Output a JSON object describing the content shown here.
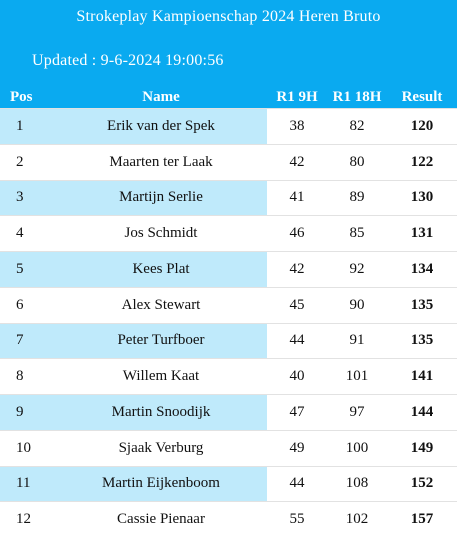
{
  "header": {
    "title": "Strokeplay Kampioenschap 2024 Heren Bruto",
    "updated": "Updated : 9-6-2024 19:00:56"
  },
  "columns": {
    "pos": "Pos",
    "name": "Name",
    "r1_9h": "R1 9H",
    "r1_18h": "R1 18H",
    "result": "Result"
  },
  "rows": [
    {
      "pos": "1",
      "name": "Erik van der Spek",
      "r1_9h": "38",
      "r1_18h": "82",
      "result": "120"
    },
    {
      "pos": "2",
      "name": "Maarten ter Laak",
      "r1_9h": "42",
      "r1_18h": "80",
      "result": "122"
    },
    {
      "pos": "3",
      "name": "Martijn Serlie",
      "r1_9h": "41",
      "r1_18h": "89",
      "result": "130"
    },
    {
      "pos": "4",
      "name": "Jos Schmidt",
      "r1_9h": "46",
      "r1_18h": "85",
      "result": "131"
    },
    {
      "pos": "5",
      "name": "Kees Plat",
      "r1_9h": "42",
      "r1_18h": "92",
      "result": "134"
    },
    {
      "pos": "6",
      "name": "Alex Stewart",
      "r1_9h": "45",
      "r1_18h": "90",
      "result": "135"
    },
    {
      "pos": "7",
      "name": "Peter Turfboer",
      "r1_9h": "44",
      "r1_18h": "91",
      "result": "135"
    },
    {
      "pos": "8",
      "name": "Willem Kaat",
      "r1_9h": "40",
      "r1_18h": "101",
      "result": "141"
    },
    {
      "pos": "9",
      "name": "Martin Snoodijk",
      "r1_9h": "47",
      "r1_18h": "97",
      "result": "144"
    },
    {
      "pos": "10",
      "name": "Sjaak Verburg",
      "r1_9h": "49",
      "r1_18h": "100",
      "result": "149"
    },
    {
      "pos": "11",
      "name": "Martin Eijkenboom",
      "r1_9h": "44",
      "r1_18h": "108",
      "result": "152"
    },
    {
      "pos": "12",
      "name": "Cassie Pienaar",
      "r1_9h": "55",
      "r1_18h": "102",
      "result": "157"
    }
  ],
  "colors": {
    "header_bg": "#0aaaf0",
    "row_highlight": "#bfeafb"
  }
}
